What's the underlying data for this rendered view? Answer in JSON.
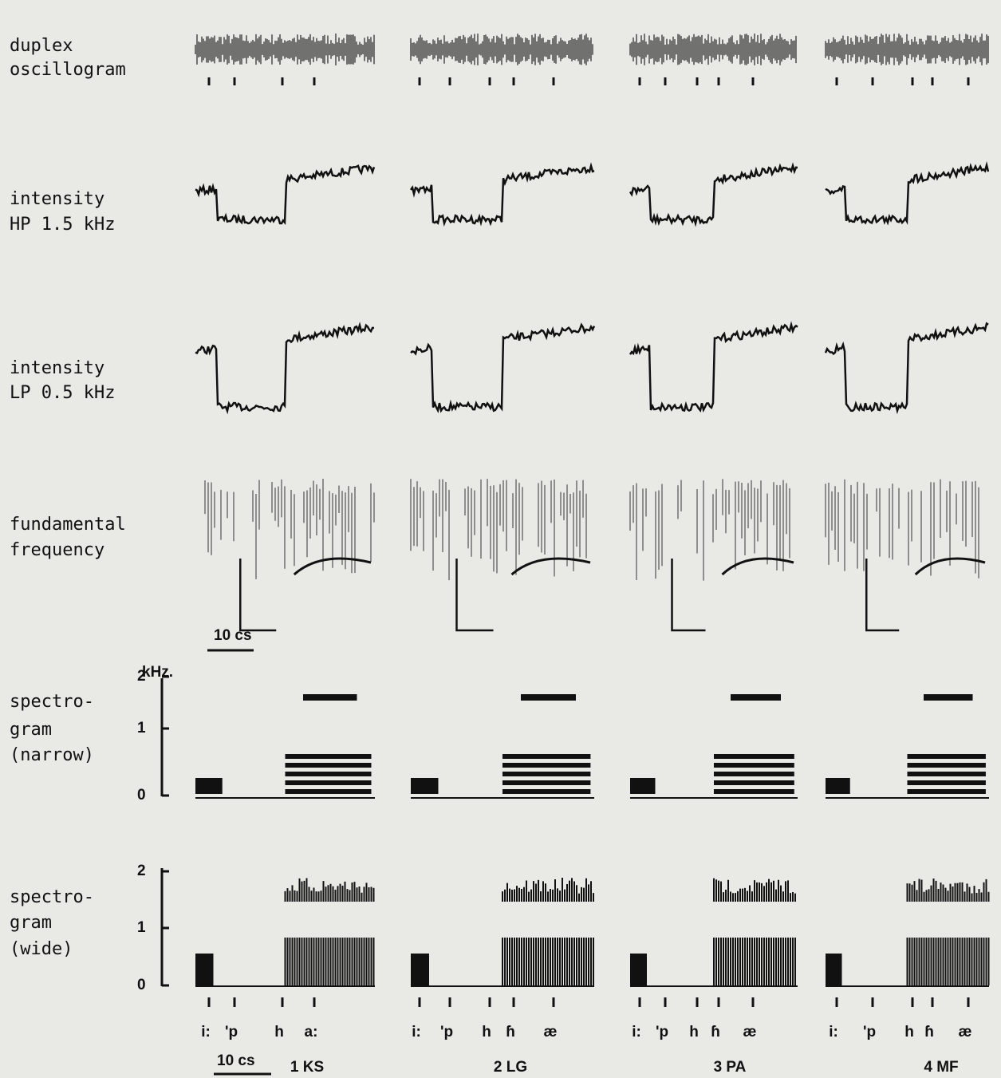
{
  "rows": [
    {
      "lines": [
        "duplex",
        "oscillogram"
      ]
    },
    {
      "lines": [
        "intensity",
        "HP 1.5 kHz"
      ]
    },
    {
      "lines": [
        "intensity",
        "LP 0.5 kHz"
      ]
    },
    {
      "lines": [
        "fundamental",
        "frequency"
      ]
    },
    {
      "lines": [
        "spectro-",
        "gram",
        "(narrow)"
      ]
    },
    {
      "lines": [
        "spectro-",
        "gram",
        "(wide)"
      ]
    }
  ],
  "scale_bars": [
    "10 cs",
    "10 cs"
  ],
  "khz_label": "kHz.",
  "narrow_ticks": [
    2,
    1,
    0
  ],
  "wide_ticks": [
    2,
    1,
    0
  ],
  "panels": [
    {
      "speaker": "1 KS",
      "phones": [
        "i:",
        "'p",
        "h",
        "a:"
      ]
    },
    {
      "speaker": "2 LG",
      "phones": [
        "i:",
        "'p",
        "h",
        "ɦ",
        "æ"
      ]
    },
    {
      "speaker": "3 PA",
      "phones": [
        "i:",
        "'p",
        "h",
        "ɦ",
        "æ"
      ]
    },
    {
      "speaker": "4 MF",
      "phones": [
        "i:",
        "'p",
        "h",
        "ɦ",
        "æ"
      ]
    }
  ]
}
